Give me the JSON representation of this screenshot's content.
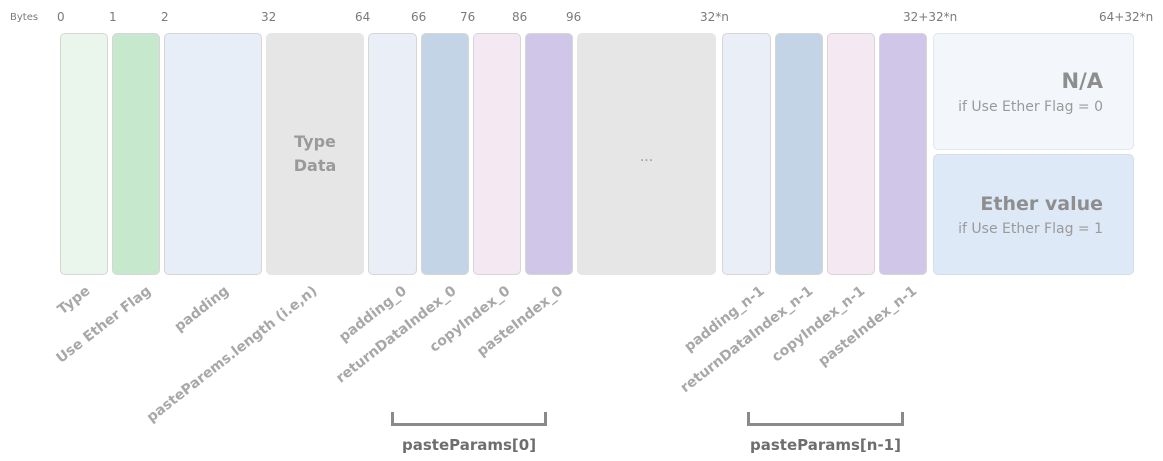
{
  "bytes_label": "Bytes",
  "offsets": [
    "0",
    "1",
    "2",
    "32",
    "64",
    "66",
    "76",
    "86",
    "96",
    "32*n",
    "32+32*n",
    "64+32*n"
  ],
  "type_data": [
    "Type",
    "Data"
  ],
  "ellipsis": "...",
  "ether": {
    "na_title": "N/A",
    "na_sub": "if Use Ether Flag = 0",
    "value_title": "Ether value",
    "value_sub": "if Use Ether Flag = 1"
  },
  "field_labels": [
    "Type",
    "Use Ether Flag",
    "padding",
    "pasteParems.length (i.e,n)",
    "padding_0",
    "returnDataIndex_0",
    "copyIndex_0",
    "pasteIndex_0",
    "padding_n-1",
    "returnDataIndex_n-1",
    "copyIndex_n-1",
    "pasteIndex_n-1"
  ],
  "groups": [
    "pasteParams[0]",
    "pasteParams[n-1]"
  ],
  "colors": {
    "type": "#eaf6ec",
    "ether_flag": "#c6e8cc",
    "padding": "#e7eef7",
    "type_data": "#e6e6e6",
    "padding_x": "#e9eef7",
    "return_data_index": "#c4d4e7",
    "copy_index": "#f4e8f2",
    "paste_index": "#cfc6e8",
    "na_bg": "#f3f6fb",
    "ether_value_bg": "#dde9f7"
  }
}
